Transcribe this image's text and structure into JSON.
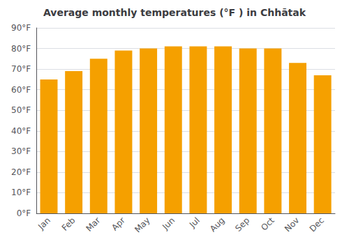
{
  "chart_data": {
    "type": "bar",
    "title": "Average monthly temperatures (°F ) in Chhātak",
    "categories": [
      "Jan",
      "Feb",
      "Mar",
      "Apr",
      "May",
      "Jun",
      "Jul",
      "Aug",
      "Sep",
      "Oct",
      "Nov",
      "Dec"
    ],
    "values": [
      65,
      69,
      75,
      79,
      80,
      81,
      81,
      81,
      80,
      80,
      73,
      67
    ],
    "color": "#F5A000",
    "ylim": [
      0,
      90
    ],
    "yticks": [
      {
        "value": 0,
        "label": "0°F"
      },
      {
        "value": 10,
        "label": "10°F"
      },
      {
        "value": 20,
        "label": "20°F"
      },
      {
        "value": 30,
        "label": "30°F"
      },
      {
        "value": 40,
        "label": "40°F"
      },
      {
        "value": 50,
        "label": "50°F"
      },
      {
        "value": 60,
        "label": "60°F"
      },
      {
        "value": 70,
        "label": "70°F"
      },
      {
        "value": 80,
        "label": "80°F"
      },
      {
        "value": 90,
        "label": "90°F"
      }
    ],
    "grid": true
  }
}
